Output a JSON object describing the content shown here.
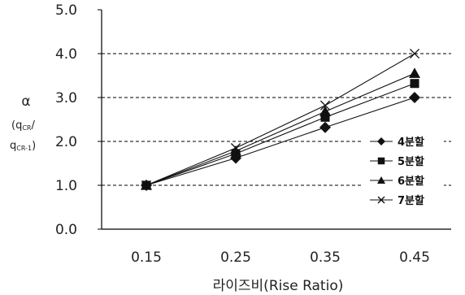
{
  "chart_data": {
    "type": "line",
    "categories": [
      "0.15",
      "0.25",
      "0.35",
      "0.45"
    ],
    "x": [
      0.15,
      0.25,
      0.35,
      0.45
    ],
    "series": [
      {
        "name": "4분할",
        "marker": "diamond",
        "values": [
          1.0,
          1.62,
          2.32,
          3.0
        ]
      },
      {
        "name": "5분할",
        "marker": "square",
        "values": [
          1.0,
          1.72,
          2.55,
          3.32
        ]
      },
      {
        "name": "6분할",
        "marker": "triangle",
        "values": [
          1.0,
          1.78,
          2.68,
          3.55
        ]
      },
      {
        "name": "7분할",
        "marker": "x",
        "values": [
          1.0,
          1.85,
          2.82,
          4.0
        ]
      }
    ],
    "ylim": [
      0,
      5
    ],
    "yticks": [
      "0.0",
      "1.0",
      "2.0",
      "3.0",
      "4.0",
      "5.0"
    ],
    "xlabel": "라이즈비(Rise Ratio)",
    "ylabel": {
      "alpha": "α",
      "open": "(",
      "num": "q",
      "num_sub": "CR",
      "slash": "/",
      "den": "q",
      "den_sub": "CR-1",
      "close": ")"
    },
    "grid": "horizontal-dashed",
    "legend_position": "right-middle",
    "colors": {
      "line": "#111111",
      "grid": "#000000"
    }
  }
}
